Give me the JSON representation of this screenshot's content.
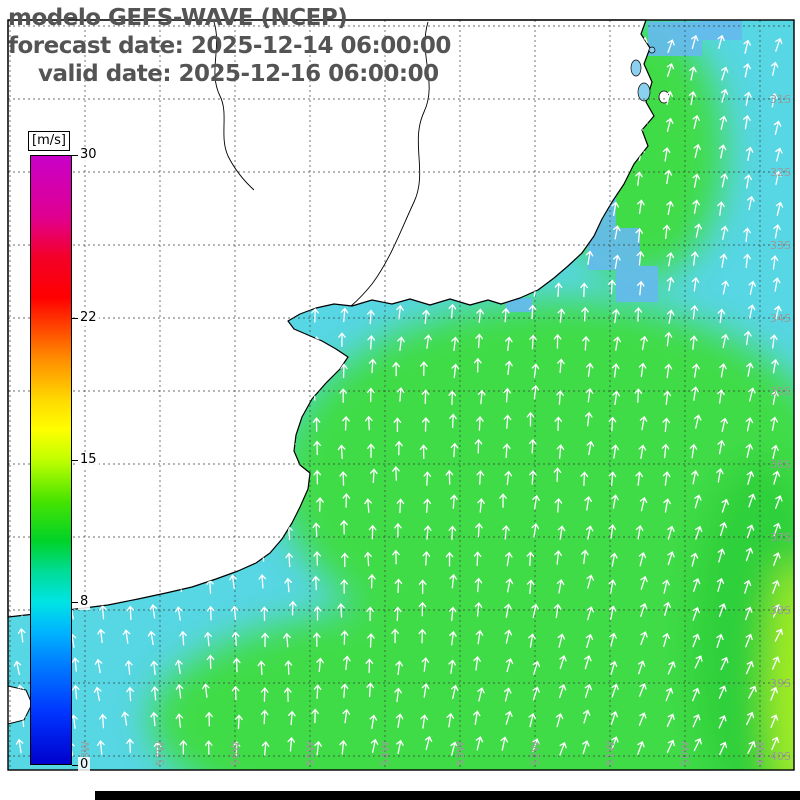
{
  "header": {
    "model_line": "modelo GEFS-WAVE (NCEP)",
    "forecast_line": "forecast date: 2025-12-14 06:00:00",
    "valid_line": "valid date: 2025-12-16 06:00:00"
  },
  "colorbar": {
    "unit_label": "[m/s]",
    "min": 0,
    "max": 30,
    "tick_values": [
      30,
      22,
      15,
      8,
      0
    ],
    "gradient_stops": [
      {
        "value": 30,
        "color": "#c800c8"
      },
      {
        "value": 27,
        "color": "#e00090"
      },
      {
        "value": 25,
        "color": "#f40028"
      },
      {
        "value": 23,
        "color": "#ff0000"
      },
      {
        "value": 20,
        "color": "#ff8c00"
      },
      {
        "value": 18,
        "color": "#ffd800"
      },
      {
        "value": 16.5,
        "color": "#ffff00"
      },
      {
        "value": 15,
        "color": "#c0ff00"
      },
      {
        "value": 13,
        "color": "#48e400"
      },
      {
        "value": 11,
        "color": "#00d228"
      },
      {
        "value": 9.5,
        "color": "#00dc96"
      },
      {
        "value": 8,
        "color": "#00e4e4"
      },
      {
        "value": 6.5,
        "color": "#00b4ff"
      },
      {
        "value": 5,
        "color": "#0080ff"
      },
      {
        "value": 2.5,
        "color": "#0034ff"
      },
      {
        "value": 0,
        "color": "#0000cd"
      }
    ]
  },
  "map": {
    "lat_labels": [
      "31S",
      "32S",
      "33S",
      "34S",
      "35S",
      "36S",
      "37S",
      "38S",
      "39S",
      "40S"
    ],
    "lon_labels": [
      "58W",
      "57W",
      "56W",
      "55W",
      "54W",
      "53W",
      "52W",
      "51W",
      "50W",
      "49W"
    ],
    "ocean_base_color": "#57d6e4",
    "green_color": "#3fdc46",
    "deep_green_color": "#2ed03a",
    "yellow_green_color": "#a8ee1e",
    "shallow_color": "#66baef",
    "lagoon_color": "#8cd0f0",
    "arrow_color": "#ffffff",
    "land_color": "#ffffff",
    "coast_color": "#000000",
    "grid_label_color": "#9b9b9b"
  }
}
